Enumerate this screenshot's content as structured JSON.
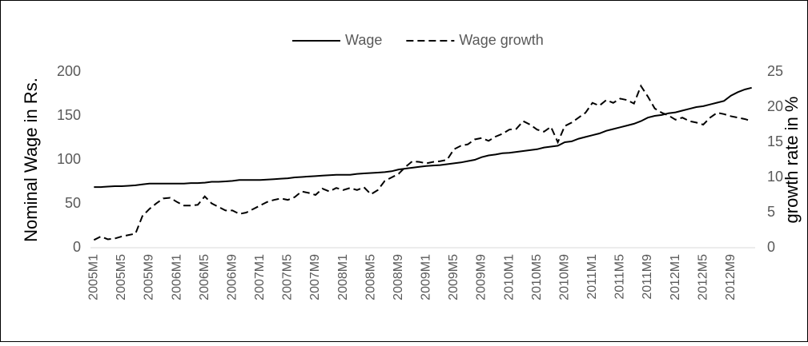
{
  "chart_data": {
    "type": "line",
    "categories": [
      "2005M1",
      null,
      null,
      null,
      "2005M5",
      null,
      null,
      null,
      "2005M9",
      null,
      null,
      null,
      "2006M1",
      null,
      null,
      null,
      "2006M5",
      null,
      null,
      null,
      "2006M9",
      null,
      null,
      null,
      "2007M1",
      null,
      null,
      null,
      "2007M5",
      null,
      null,
      null,
      "2007M9",
      null,
      null,
      null,
      "2008M1",
      null,
      null,
      null,
      "2008M5",
      null,
      null,
      null,
      "2008M9",
      null,
      null,
      null,
      "2009M1",
      null,
      null,
      null,
      "2009M5",
      null,
      null,
      null,
      "2009M9",
      null,
      null,
      null,
      "2010M1",
      null,
      null,
      null,
      "2010M5",
      null,
      null,
      null,
      "2010M9",
      null,
      null,
      null,
      "2011M1",
      null,
      null,
      null,
      "2011M5",
      null,
      null,
      null,
      "2011M9",
      null,
      null,
      null,
      "2012M1",
      null,
      null,
      null,
      "2012M5",
      null,
      null,
      null,
      "2012M9",
      null,
      null,
      null
    ],
    "series": [
      {
        "name": "Wage",
        "color": "#000000",
        "line_style": "solid",
        "axis": "y",
        "values": [
          69,
          69,
          69.5,
          70,
          70,
          70.5,
          71,
          72,
          73,
          73,
          73,
          73,
          73,
          73,
          73.5,
          73.5,
          74,
          75,
          75,
          75.5,
          76,
          77,
          77,
          77,
          77,
          77.5,
          78,
          78.5,
          79,
          80,
          80.5,
          81,
          81.5,
          82,
          82.5,
          83,
          83,
          83,
          84,
          84.5,
          85,
          85.5,
          86,
          87,
          89,
          90,
          91,
          92,
          93,
          93.5,
          94,
          95,
          96,
          97,
          98.5,
          100,
          103,
          105,
          106,
          107.5,
          108,
          109,
          110,
          111,
          112,
          114,
          115,
          116,
          120,
          121,
          124,
          126,
          128,
          130,
          133,
          135,
          137,
          139,
          141,
          144,
          148,
          150,
          151,
          153,
          154,
          156,
          158,
          160,
          161,
          163,
          165,
          167,
          173,
          177,
          180,
          182
        ]
      },
      {
        "name": "Wage growth",
        "color": "#000000",
        "line_style": "dashed",
        "axis": "y2",
        "values": [
          1.1,
          1.6,
          1.2,
          1.3,
          1.6,
          1.8,
          2,
          4.5,
          5.5,
          6.3,
          7,
          7.1,
          6.5,
          6,
          6,
          6.1,
          7.3,
          6.3,
          5.8,
          5.3,
          5.3,
          4.8,
          5,
          5.5,
          6,
          6.5,
          6.8,
          7,
          6.8,
          7.2,
          8,
          7.8,
          7.5,
          8.4,
          8,
          8.5,
          8.2,
          8.5,
          8.2,
          8.6,
          7.6,
          8.2,
          9.5,
          10,
          10.5,
          11.5,
          12.3,
          12.2,
          12,
          12.2,
          12.3,
          12.5,
          14,
          14.5,
          14.7,
          15.4,
          15.6,
          15.2,
          15.8,
          16.2,
          16.8,
          16.9,
          18,
          17.5,
          16.8,
          16.5,
          17.2,
          15,
          17.3,
          17.8,
          18.5,
          19.2,
          20.6,
          20.2,
          21,
          20.6,
          21.2,
          21,
          20.5,
          23,
          21.5,
          19.8,
          19.2,
          18.8,
          18.2,
          18.5,
          18,
          17.8,
          17.5,
          18.5,
          19.2,
          19,
          18.7,
          18.5,
          18.3,
          18
        ]
      }
    ],
    "y_label": "Nominal Wage in Rs.",
    "y2_label": "growth rate in %",
    "ylim": [
      0,
      200
    ],
    "yticks": [
      0,
      50,
      100,
      150,
      200
    ],
    "y2lim": [
      0,
      25
    ],
    "y2ticks": [
      0,
      5,
      10,
      15,
      20,
      25
    ],
    "legend": "top",
    "grid": false
  }
}
